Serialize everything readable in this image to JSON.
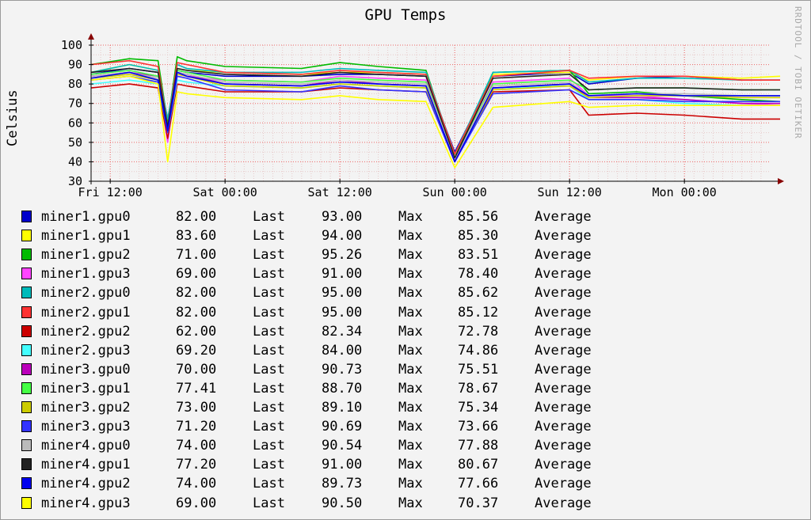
{
  "chart_data": {
    "type": "line",
    "title": "GPU Temps",
    "ylabel": "Celsius",
    "watermark": "RRDTOOL / TOBI OETIKER",
    "ylim": [
      30,
      100
    ],
    "y_ticks": [
      30,
      40,
      50,
      60,
      70,
      80,
      90,
      100
    ],
    "xlim": [
      0,
      70
    ],
    "x_ticks": [
      {
        "t": 0,
        "label": "Fri 12:00"
      },
      {
        "t": 12,
        "label": "Sat 00:00"
      },
      {
        "t": 24,
        "label": "Sat 12:00"
      },
      {
        "t": 36,
        "label": "Sun 00:00"
      },
      {
        "t": 48,
        "label": "Sun 12:00"
      },
      {
        "t": 60,
        "label": "Mon 00:00"
      }
    ],
    "x_unit": "hours since Fri 12:00",
    "grid": true,
    "legend_labels": {
      "last": "Last",
      "max": "Max",
      "avg": "Average"
    },
    "series": [
      {
        "name": "miner1.gpu0",
        "color": "#0000cc",
        "last": "82.00",
        "max": "93.00",
        "avg": "85.56",
        "x": [
          -2,
          2,
          5,
          6,
          7,
          8,
          12,
          20,
          24,
          28,
          33,
          36,
          40,
          48,
          50,
          55,
          60,
          66,
          70
        ],
        "y": [
          85,
          88,
          86,
          62,
          87,
          86,
          84,
          84,
          85,
          85,
          84,
          45,
          84,
          86,
          80,
          83,
          84,
          82,
          82
        ]
      },
      {
        "name": "miner1.gpu1",
        "color": "#ffff00",
        "last": "83.60",
        "max": "94.00",
        "avg": "85.30",
        "x": [
          -2,
          2,
          5,
          6,
          7,
          8,
          12,
          20,
          24,
          28,
          33,
          36,
          40,
          48,
          50,
          55,
          60,
          66,
          70
        ],
        "y": [
          86,
          90,
          87,
          60,
          88,
          87,
          86,
          85,
          86,
          86,
          85,
          40,
          85,
          86,
          82,
          84,
          84,
          83,
          84
        ]
      },
      {
        "name": "miner1.gpu2",
        "color": "#00bb00",
        "last": "71.00",
        "max": "95.26",
        "avg": "83.51",
        "x": [
          -2,
          2,
          5,
          6,
          7,
          8,
          12,
          20,
          24,
          28,
          33,
          36,
          40,
          48,
          50,
          55,
          60,
          66,
          70
        ],
        "y": [
          90,
          93,
          92,
          60,
          94,
          92,
          89,
          88,
          91,
          89,
          87,
          42,
          86,
          87,
          75,
          76,
          74,
          72,
          71
        ]
      },
      {
        "name": "miner1.gpu3",
        "color": "#ff44ff",
        "last": "69.00",
        "max": "91.00",
        "avg": "78.40",
        "x": [
          -2,
          2,
          5,
          6,
          7,
          8,
          12,
          20,
          24,
          28,
          33,
          36,
          40,
          48,
          50,
          55,
          60,
          66,
          70
        ],
        "y": [
          84,
          86,
          82,
          50,
          86,
          84,
          82,
          81,
          84,
          83,
          82,
          40,
          81,
          83,
          74,
          74,
          72,
          70,
          69
        ]
      },
      {
        "name": "miner2.gpu0",
        "color": "#00bbbb",
        "last": "82.00",
        "max": "95.00",
        "avg": "85.62",
        "x": [
          -2,
          2,
          5,
          6,
          7,
          8,
          12,
          20,
          24,
          28,
          33,
          36,
          40,
          48,
          50,
          55,
          60,
          66,
          70
        ],
        "y": [
          86,
          90,
          87,
          62,
          90,
          88,
          86,
          86,
          88,
          87,
          86,
          44,
          86,
          87,
          81,
          83,
          83,
          82,
          82
        ]
      },
      {
        "name": "miner2.gpu1",
        "color": "#ff3333",
        "last": "82.00",
        "max": "95.00",
        "avg": "85.12",
        "x": [
          -2,
          2,
          5,
          6,
          7,
          8,
          12,
          20,
          24,
          28,
          33,
          36,
          40,
          48,
          50,
          55,
          60,
          66,
          70
        ],
        "y": [
          90,
          92,
          89,
          58,
          91,
          90,
          86,
          85,
          87,
          86,
          85,
          44,
          84,
          87,
          83,
          84,
          84,
          82,
          82
        ]
      },
      {
        "name": "miner2.gpu2",
        "color": "#cc0000",
        "last": "62.00",
        "max": "82.34",
        "avg": "72.78",
        "x": [
          -2,
          2,
          5,
          6,
          7,
          8,
          12,
          20,
          24,
          28,
          33,
          36,
          40,
          48,
          50,
          55,
          60,
          66,
          70
        ],
        "y": [
          78,
          80,
          78,
          52,
          80,
          79,
          76,
          76,
          78,
          77,
          76,
          40,
          76,
          77,
          64,
          65,
          64,
          62,
          62
        ]
      },
      {
        "name": "miner2.gpu3",
        "color": "#44ffff",
        "last": "69.20",
        "max": "84.00",
        "avg": "74.86",
        "x": [
          -2,
          2,
          5,
          6,
          7,
          8,
          12,
          20,
          24,
          28,
          33,
          36,
          40,
          48,
          50,
          55,
          60,
          66,
          70
        ],
        "y": [
          80,
          82,
          80,
          55,
          82,
          81,
          79,
          78,
          80,
          79,
          78,
          42,
          78,
          79,
          72,
          72,
          70,
          69,
          69
        ]
      },
      {
        "name": "miner3.gpu0",
        "color": "#bb00bb",
        "last": "70.00",
        "max": "90.73",
        "avg": "75.51",
        "x": [
          -2,
          2,
          5,
          6,
          7,
          8,
          12,
          20,
          24,
          28,
          33,
          36,
          40,
          48,
          50,
          55,
          60,
          66,
          70
        ],
        "y": [
          84,
          86,
          84,
          55,
          86,
          85,
          80,
          79,
          82,
          80,
          79,
          40,
          78,
          80,
          73,
          73,
          72,
          70,
          70
        ]
      },
      {
        "name": "miner3.gpu1",
        "color": "#44ff44",
        "last": "77.41",
        "max": "88.70",
        "avg": "78.67",
        "x": [
          -2,
          2,
          5,
          6,
          7,
          8,
          12,
          20,
          24,
          28,
          33,
          36,
          40,
          48,
          50,
          55,
          60,
          66,
          70
        ],
        "y": [
          85,
          87,
          84,
          58,
          87,
          86,
          82,
          81,
          83,
          82,
          81,
          42,
          80,
          82,
          77,
          78,
          78,
          77,
          77
        ]
      },
      {
        "name": "miner3.gpu2",
        "color": "#cccc00",
        "last": "73.00",
        "max": "89.10",
        "avg": "75.34",
        "x": [
          -2,
          2,
          5,
          6,
          7,
          8,
          12,
          20,
          24,
          28,
          33,
          36,
          40,
          48,
          50,
          55,
          60,
          66,
          70
        ],
        "y": [
          83,
          85,
          82,
          55,
          85,
          84,
          79,
          78,
          80,
          79,
          78,
          40,
          77,
          79,
          73,
          74,
          74,
          73,
          73
        ]
      },
      {
        "name": "miner3.gpu3",
        "color": "#3333ff",
        "last": "71.20",
        "max": "90.69",
        "avg": "73.66",
        "x": [
          -2,
          2,
          5,
          6,
          7,
          8,
          12,
          20,
          24,
          28,
          33,
          36,
          40,
          48,
          50,
          55,
          60,
          66,
          70
        ],
        "y": [
          82,
          84,
          81,
          55,
          84,
          83,
          77,
          76,
          79,
          77,
          76,
          40,
          75,
          77,
          72,
          72,
          71,
          71,
          71
        ]
      },
      {
        "name": "miner4.gpu0",
        "color": "#bbbbbb",
        "last": "74.00",
        "max": "90.54",
        "avg": "77.88",
        "x": [
          -2,
          2,
          5,
          6,
          7,
          8,
          12,
          20,
          24,
          28,
          33,
          36,
          40,
          48,
          50,
          55,
          60,
          66,
          70
        ],
        "y": [
          84,
          86,
          83,
          57,
          86,
          85,
          81,
          80,
          82,
          81,
          80,
          42,
          79,
          81,
          74,
          75,
          75,
          74,
          74
        ]
      },
      {
        "name": "miner4.gpu1",
        "color": "#222222",
        "last": "77.20",
        "max": "91.00",
        "avg": "80.67",
        "x": [
          -2,
          2,
          5,
          6,
          7,
          8,
          12,
          20,
          24,
          28,
          33,
          36,
          40,
          48,
          50,
          55,
          60,
          66,
          70
        ],
        "y": [
          86,
          88,
          86,
          58,
          88,
          87,
          85,
          84,
          86,
          85,
          84,
          42,
          83,
          85,
          77,
          78,
          78,
          77,
          77
        ]
      },
      {
        "name": "miner4.gpu2",
        "color": "#0000ee",
        "last": "74.00",
        "max": "89.73",
        "avg": "77.66",
        "x": [
          -2,
          2,
          5,
          6,
          7,
          8,
          12,
          20,
          24,
          28,
          33,
          36,
          40,
          48,
          50,
          55,
          60,
          66,
          70
        ],
        "y": [
          83,
          86,
          82,
          56,
          86,
          84,
          80,
          79,
          81,
          80,
          79,
          40,
          78,
          80,
          74,
          75,
          74,
          74,
          74
        ]
      },
      {
        "name": "miner4.gpu3",
        "color": "#ffff00",
        "last": "69.00",
        "max": "90.50",
        "avg": "70.37",
        "x": [
          -2,
          2,
          5,
          6,
          7,
          8,
          12,
          20,
          24,
          28,
          33,
          36,
          40,
          48,
          50,
          55,
          60,
          66,
          70
        ],
        "y": [
          82,
          84,
          80,
          40,
          76,
          75,
          73,
          72,
          74,
          72,
          71,
          37,
          68,
          71,
          68,
          69,
          69,
          69,
          69
        ]
      }
    ]
  }
}
